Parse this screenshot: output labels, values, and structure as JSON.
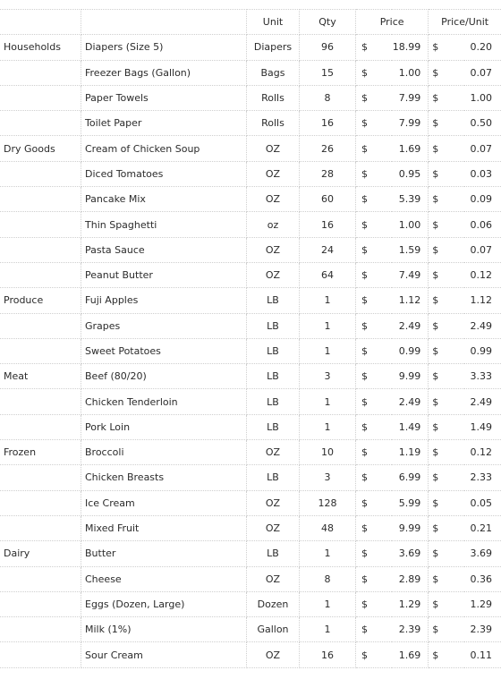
{
  "columns": {
    "unit": "Unit",
    "qty": "Qty",
    "price": "Price",
    "price_per_unit": "Price/Unit",
    "currency": "$"
  },
  "rows": [
    {
      "category": "Households",
      "item": "Diapers (Size 5)",
      "unit": "Diapers",
      "qty": "96",
      "price": "18.99",
      "ppu": "0.20"
    },
    {
      "category": "",
      "item": "Freezer Bags (Gallon)",
      "unit": "Bags",
      "qty": "15",
      "price": "1.00",
      "ppu": "0.07"
    },
    {
      "category": "",
      "item": "Paper Towels",
      "unit": "Rolls",
      "qty": "8",
      "price": "7.99",
      "ppu": "1.00"
    },
    {
      "category": "",
      "item": "Toilet Paper",
      "unit": "Rolls",
      "qty": "16",
      "price": "7.99",
      "ppu": "0.50"
    },
    {
      "category": "Dry Goods",
      "item": "Cream of Chicken Soup",
      "unit": "OZ",
      "qty": "26",
      "price": "1.69",
      "ppu": "0.07"
    },
    {
      "category": "",
      "item": "Diced Tomatoes",
      "unit": "OZ",
      "qty": "28",
      "price": "0.95",
      "ppu": "0.03"
    },
    {
      "category": "",
      "item": "Pancake Mix",
      "unit": "OZ",
      "qty": "60",
      "price": "5.39",
      "ppu": "0.09"
    },
    {
      "category": "",
      "item": "Thin Spaghetti",
      "unit": "oz",
      "qty": "16",
      "price": "1.00",
      "ppu": "0.06"
    },
    {
      "category": "",
      "item": "Pasta Sauce",
      "unit": "OZ",
      "qty": "24",
      "price": "1.59",
      "ppu": "0.07"
    },
    {
      "category": "",
      "item": "Peanut Butter",
      "unit": "OZ",
      "qty": "64",
      "price": "7.49",
      "ppu": "0.12"
    },
    {
      "category": "Produce",
      "item": "Fuji Apples",
      "unit": "LB",
      "qty": "1",
      "price": "1.12",
      "ppu": "1.12"
    },
    {
      "category": "",
      "item": "Grapes",
      "unit": "LB",
      "qty": "1",
      "price": "2.49",
      "ppu": "2.49"
    },
    {
      "category": "",
      "item": "Sweet Potatoes",
      "unit": "LB",
      "qty": "1",
      "price": "0.99",
      "ppu": "0.99"
    },
    {
      "category": "Meat",
      "item": "Beef (80/20)",
      "unit": "LB",
      "qty": "3",
      "price": "9.99",
      "ppu": "3.33"
    },
    {
      "category": "",
      "item": "Chicken Tenderloin",
      "unit": "LB",
      "qty": "1",
      "price": "2.49",
      "ppu": "2.49"
    },
    {
      "category": "",
      "item": "Pork Loin",
      "unit": "LB",
      "qty": "1",
      "price": "1.49",
      "ppu": "1.49"
    },
    {
      "category": "Frozen",
      "item": "Broccoli",
      "unit": "OZ",
      "qty": "10",
      "price": "1.19",
      "ppu": "0.12"
    },
    {
      "category": "",
      "item": "Chicken Breasts",
      "unit": "LB",
      "qty": "3",
      "price": "6.99",
      "ppu": "2.33"
    },
    {
      "category": "",
      "item": "Ice Cream",
      "unit": "OZ",
      "qty": "128",
      "price": "5.99",
      "ppu": "0.05"
    },
    {
      "category": "",
      "item": "Mixed Fruit",
      "unit": "OZ",
      "qty": "48",
      "price": "9.99",
      "ppu": "0.21"
    },
    {
      "category": "Dairy",
      "item": "Butter",
      "unit": "LB",
      "qty": "1",
      "price": "3.69",
      "ppu": "3.69"
    },
    {
      "category": "",
      "item": "Cheese",
      "unit": "OZ",
      "qty": "8",
      "price": "2.89",
      "ppu": "0.36"
    },
    {
      "category": "",
      "item": "Eggs (Dozen, Large)",
      "unit": "Dozen",
      "qty": "1",
      "price": "1.29",
      "ppu": "1.29"
    },
    {
      "category": "",
      "item": "Milk (1%)",
      "unit": "Gallon",
      "qty": "1",
      "price": "2.39",
      "ppu": "2.39"
    },
    {
      "category": "",
      "item": "Sour Cream",
      "unit": "OZ",
      "qty": "16",
      "price": "1.69",
      "ppu": "0.11"
    }
  ]
}
